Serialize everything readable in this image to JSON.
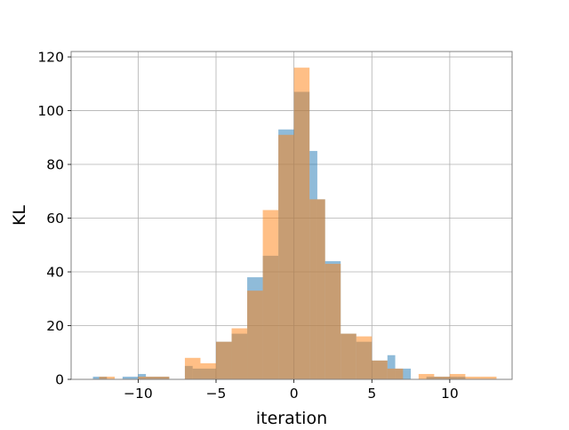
{
  "chart_data": {
    "type": "bar",
    "title": "",
    "xlabel": "iteration",
    "ylabel": "KL",
    "xlim": [
      -14.3,
      14.0
    ],
    "ylim": [
      0,
      122
    ],
    "grid": true,
    "legend": "none",
    "x_ticks": [
      -10,
      -5,
      0,
      5,
      10
    ],
    "x_tick_labels": [
      "−10",
      "−5",
      "0",
      "5",
      "10"
    ],
    "y_ticks": [
      0,
      20,
      40,
      60,
      80,
      100,
      120
    ],
    "y_tick_labels": [
      "0",
      "20",
      "40",
      "60",
      "80",
      "100",
      "120"
    ],
    "series": [
      {
        "color": "#1f77b4",
        "opacity": 0.5,
        "bins": [
          {
            "x0": -12.9,
            "x1": -12.0,
            "v": 1
          },
          {
            "x0": -12.0,
            "x1": -11.0,
            "v": 0
          },
          {
            "x0": -11.0,
            "x1": -10.0,
            "v": 1
          },
          {
            "x0": -10.0,
            "x1": -9.5,
            "v": 2
          },
          {
            "x0": -9.5,
            "x1": -8.0,
            "v": 1
          },
          {
            "x0": -7.0,
            "x1": -6.5,
            "v": 5
          },
          {
            "x0": -6.5,
            "x1": -5.0,
            "v": 4
          },
          {
            "x0": -5.0,
            "x1": -4.0,
            "v": 14
          },
          {
            "x0": -4.0,
            "x1": -3.0,
            "v": 17
          },
          {
            "x0": -3.0,
            "x1": -2.0,
            "v": 38
          },
          {
            "x0": -2.0,
            "x1": -1.0,
            "v": 46
          },
          {
            "x0": -1.0,
            "x1": 0.0,
            "v": 93
          },
          {
            "x0": 0.0,
            "x1": 1.0,
            "v": 107
          },
          {
            "x0": 1.0,
            "x1": 1.5,
            "v": 85
          },
          {
            "x0": 1.5,
            "x1": 2.0,
            "v": 67
          },
          {
            "x0": 2.0,
            "x1": 3.0,
            "v": 44
          },
          {
            "x0": 3.0,
            "x1": 4.0,
            "v": 17
          },
          {
            "x0": 4.0,
            "x1": 5.0,
            "v": 14
          },
          {
            "x0": 5.0,
            "x1": 6.0,
            "v": 7
          },
          {
            "x0": 6.0,
            "x1": 6.5,
            "v": 9
          },
          {
            "x0": 6.5,
            "x1": 7.5,
            "v": 4
          },
          {
            "x0": 7.5,
            "x1": 8.5,
            "v": 0
          },
          {
            "x0": 8.5,
            "x1": 9.5,
            "v": 1
          },
          {
            "x0": 9.5,
            "x1": 10.5,
            "v": 1
          },
          {
            "x0": 10.5,
            "x1": 11.0,
            "v": 1
          }
        ]
      },
      {
        "color": "#ff7f0e",
        "opacity": 0.5,
        "bins": [
          {
            "x0": -12.5,
            "x1": -11.5,
            "v": 1
          },
          {
            "x0": -10.0,
            "x1": -9.0,
            "v": 1
          },
          {
            "x0": -9.0,
            "x1": -8.0,
            "v": 1
          },
          {
            "x0": -7.0,
            "x1": -6.0,
            "v": 8
          },
          {
            "x0": -6.0,
            "x1": -5.0,
            "v": 6
          },
          {
            "x0": -5.0,
            "x1": -4.0,
            "v": 14
          },
          {
            "x0": -4.0,
            "x1": -3.0,
            "v": 19
          },
          {
            "x0": -3.0,
            "x1": -2.0,
            "v": 33
          },
          {
            "x0": -2.0,
            "x1": -1.0,
            "v": 63
          },
          {
            "x0": -1.0,
            "x1": 0.0,
            "v": 91
          },
          {
            "x0": 0.0,
            "x1": 1.0,
            "v": 116
          },
          {
            "x0": 1.0,
            "x1": 2.0,
            "v": 67
          },
          {
            "x0": 2.0,
            "x1": 3.0,
            "v": 43
          },
          {
            "x0": 3.0,
            "x1": 4.0,
            "v": 17
          },
          {
            "x0": 4.0,
            "x1": 5.0,
            "v": 16
          },
          {
            "x0": 5.0,
            "x1": 6.0,
            "v": 7
          },
          {
            "x0": 6.0,
            "x1": 7.0,
            "v": 4
          },
          {
            "x0": 8.0,
            "x1": 9.0,
            "v": 2
          },
          {
            "x0": 9.0,
            "x1": 10.0,
            "v": 1
          },
          {
            "x0": 10.0,
            "x1": 11.0,
            "v": 2
          },
          {
            "x0": 11.0,
            "x1": 12.0,
            "v": 1
          },
          {
            "x0": 12.0,
            "x1": 13.0,
            "v": 1
          }
        ]
      }
    ]
  }
}
